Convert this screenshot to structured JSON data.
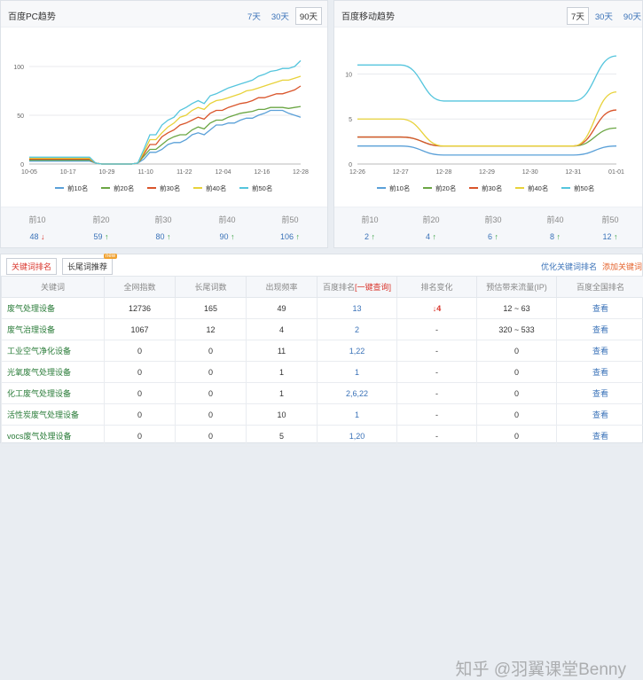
{
  "pc": {
    "title": "百度PC趋势",
    "tabs": [
      "7天",
      "30天",
      "90天"
    ],
    "active_tab": 2,
    "stats": [
      {
        "label": "前10",
        "value": "48",
        "dir": "down"
      },
      {
        "label": "前20",
        "value": "59",
        "dir": "up"
      },
      {
        "label": "前30",
        "value": "80",
        "dir": "up"
      },
      {
        "label": "前40",
        "value": "90",
        "dir": "up"
      },
      {
        "label": "前50",
        "value": "106",
        "dir": "up"
      }
    ]
  },
  "mobile": {
    "title": "百度移动趋势",
    "tabs": [
      "7天",
      "30天",
      "90天"
    ],
    "active_tab": 0,
    "stats": [
      {
        "label": "前10",
        "value": "2",
        "dir": "up"
      },
      {
        "label": "前20",
        "value": "4",
        "dir": "up"
      },
      {
        "label": "前30",
        "value": "6",
        "dir": "up"
      },
      {
        "label": "前40",
        "value": "8",
        "dir": "up"
      },
      {
        "label": "前50",
        "value": "12",
        "dir": "up"
      }
    ]
  },
  "icons": {
    "up": "arrow-up-icon",
    "down": "arrow-down-icon"
  },
  "colors": {
    "top10": "#5aa0d8",
    "top20": "#6ba644",
    "top30": "#d9552b",
    "top40": "#e8d23a",
    "top50": "#55c5dd",
    "link": "#3a72b8"
  },
  "chart_data": [
    {
      "type": "line",
      "title": "百度PC趋势",
      "x_ticks": [
        "10-05",
        "10-17",
        "10-29",
        "11-10",
        "11-22",
        "12-04",
        "12-16",
        "12-28"
      ],
      "x": [
        0,
        2,
        4,
        6,
        8,
        10,
        12,
        14,
        16,
        18,
        20,
        22,
        24,
        26,
        28,
        30,
        32,
        34,
        36,
        38,
        40,
        42,
        44,
        46,
        48,
        50,
        52,
        54,
        56,
        58,
        60,
        62,
        64,
        66,
        68,
        70,
        72,
        74,
        76,
        78,
        80,
        82,
        84,
        86,
        88,
        90
      ],
      "ylim": [
        0,
        120
      ],
      "y_ticks": [
        0,
        50,
        100
      ],
      "legend": "bottom",
      "series": [
        {
          "name": "前10名",
          "color": "#5aa0d8",
          "values": [
            3,
            3,
            3,
            3,
            3,
            3,
            3,
            3,
            3,
            3,
            3,
            1,
            0,
            0,
            0,
            0,
            0,
            0,
            1,
            5,
            12,
            12,
            15,
            20,
            22,
            22,
            25,
            30,
            32,
            30,
            35,
            40,
            40,
            42,
            42,
            45,
            47,
            47,
            50,
            52,
            55,
            55,
            55,
            52,
            50,
            48
          ]
        },
        {
          "name": "前20名",
          "color": "#6ba644",
          "values": [
            4,
            4,
            4,
            4,
            4,
            4,
            4,
            4,
            4,
            4,
            4,
            1,
            0,
            0,
            0,
            0,
            0,
            0,
            1,
            8,
            15,
            15,
            20,
            25,
            28,
            30,
            30,
            35,
            38,
            36,
            42,
            45,
            45,
            48,
            50,
            52,
            53,
            54,
            56,
            56,
            58,
            58,
            58,
            57,
            58,
            59
          ]
        },
        {
          "name": "前30名",
          "color": "#d9552b",
          "values": [
            5,
            5,
            5,
            5,
            5,
            5,
            5,
            5,
            5,
            5,
            5,
            1,
            0,
            0,
            0,
            0,
            0,
            0,
            1,
            10,
            20,
            20,
            28,
            32,
            35,
            40,
            42,
            45,
            48,
            46,
            52,
            55,
            55,
            58,
            60,
            62,
            63,
            65,
            68,
            68,
            70,
            72,
            72,
            74,
            76,
            80
          ]
        },
        {
          "name": "前40名",
          "color": "#e8d23a",
          "values": [
            6,
            6,
            6,
            6,
            6,
            6,
            6,
            6,
            6,
            6,
            6,
            1,
            0,
            0,
            0,
            0,
            0,
            0,
            1,
            12,
            25,
            25,
            32,
            38,
            42,
            48,
            50,
            55,
            58,
            56,
            62,
            65,
            66,
            68,
            70,
            72,
            75,
            76,
            78,
            80,
            82,
            84,
            86,
            86,
            88,
            90
          ]
        },
        {
          "name": "前50名",
          "color": "#55c5dd",
          "values": [
            7,
            7,
            7,
            7,
            7,
            7,
            7,
            7,
            7,
            7,
            7,
            1,
            0,
            0,
            0,
            0,
            0,
            0,
            1,
            15,
            30,
            30,
            40,
            45,
            48,
            55,
            58,
            62,
            65,
            62,
            70,
            72,
            75,
            78,
            80,
            82,
            84,
            86,
            90,
            92,
            95,
            96,
            98,
            98,
            100,
            106
          ]
        }
      ]
    },
    {
      "type": "line",
      "title": "百度移动趋势",
      "x_ticks": [
        "12-26",
        "12-27",
        "12-28",
        "12-29",
        "12-30",
        "12-31",
        "01-01"
      ],
      "x": [
        0,
        1,
        2,
        3,
        4,
        5,
        6
      ],
      "ylim": [
        0,
        13
      ],
      "y_ticks": [
        0,
        5,
        10
      ],
      "legend": "bottom",
      "series": [
        {
          "name": "前10名",
          "color": "#5aa0d8",
          "values": [
            2,
            2,
            1,
            1,
            1,
            1,
            2
          ]
        },
        {
          "name": "前20名",
          "color": "#6ba644",
          "values": [
            3,
            3,
            2,
            2,
            2,
            2,
            4
          ]
        },
        {
          "name": "前30名",
          "color": "#d9552b",
          "values": [
            3,
            3,
            2,
            2,
            2,
            2,
            6
          ]
        },
        {
          "name": "前40名",
          "color": "#e8d23a",
          "values": [
            5,
            5,
            2,
            2,
            2,
            2,
            8
          ]
        },
        {
          "name": "前50名",
          "color": "#55c5dd",
          "values": [
            11,
            11,
            7,
            7,
            7,
            7,
            12
          ]
        }
      ]
    }
  ],
  "table": {
    "tabs": [
      {
        "label": "关键词排名",
        "active": true
      },
      {
        "label": "长尾词推荐",
        "active": false,
        "badge": "new"
      }
    ],
    "link_optimize": "优化关键词排名",
    "link_add": "添加关键词",
    "headers": [
      "关键词",
      "全网指数",
      "长尾词数",
      "出现频率",
      "百度排名",
      "[一键查询]",
      "排名变化",
      "预估带来流量(IP)",
      "百度全国排名"
    ],
    "rows": [
      {
        "kw": "废气处理设备",
        "index": "12736",
        "longtail": "165",
        "freq": "49",
        "rank": "13",
        "change": "4",
        "change_dir": "down",
        "traffic": "12 ~ 63",
        "view": "查看"
      },
      {
        "kw": "废气治理设备",
        "index": "1067",
        "longtail": "12",
        "freq": "4",
        "rank": "2",
        "change": "-",
        "change_dir": "",
        "traffic": "320 ~ 533",
        "view": "查看"
      },
      {
        "kw": "工业空气净化设备",
        "index": "0",
        "longtail": "0",
        "freq": "11",
        "rank": "1,22",
        "change": "-",
        "change_dir": "",
        "traffic": "0",
        "view": "查看"
      },
      {
        "kw": "光氧废气处理设备",
        "index": "0",
        "longtail": "0",
        "freq": "1",
        "rank": "1",
        "change": "-",
        "change_dir": "",
        "traffic": "0",
        "view": "查看"
      },
      {
        "kw": "化工废气处理设备",
        "index": "0",
        "longtail": "0",
        "freq": "1",
        "rank": "2,6,22",
        "change": "-",
        "change_dir": "",
        "traffic": "0",
        "view": "查看"
      },
      {
        "kw": "活性炭废气处理设备",
        "index": "0",
        "longtail": "0",
        "freq": "10",
        "rank": "1",
        "change": "-",
        "change_dir": "",
        "traffic": "0",
        "view": "查看"
      },
      {
        "kw": "vocs废气处理设备",
        "index": "0",
        "longtail": "0",
        "freq": "5",
        "rank": "1,20",
        "change": "-",
        "change_dir": "",
        "traffic": "0",
        "view": "查看"
      }
    ]
  },
  "watermark": "知乎 @羽翼课堂Benny"
}
